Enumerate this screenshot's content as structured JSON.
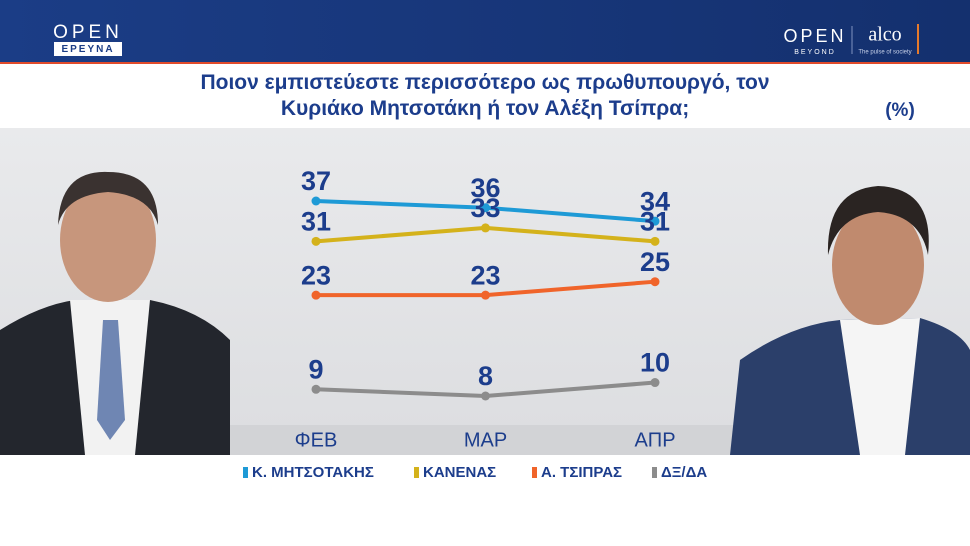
{
  "header": {
    "logo_left": "OPEN",
    "logo_left_sub": "ΕΡΕΥΝΑ",
    "logo_right": "OPEN",
    "logo_right_sub": "BEYOND",
    "partner": "alco",
    "partner_tagline": "The pulse of society"
  },
  "chart_data": {
    "type": "line",
    "title": "Ποιον εμπιστεύεστε περισσότερο ως πρωθυπουργό, τον Κυριάκο Μητσοτάκη ή τον Αλέξη Τσίπρα;",
    "unit_label": "(%)",
    "categories": [
      "ΦΕΒ",
      "ΜΑΡ",
      "ΑΠΡ"
    ],
    "series": [
      {
        "name": "Κ. ΜΗΤΣΟΤΑΚΗΣ",
        "color": "#1e9ad6",
        "values": [
          37,
          36,
          34
        ]
      },
      {
        "name": "ΚΑΝΕΝΑΣ",
        "color": "#d4b21b",
        "values": [
          31,
          33,
          31
        ]
      },
      {
        "name": "Α. ΤΣΙΠΡΑΣ",
        "color": "#f0642a",
        "values": [
          23,
          23,
          25
        ]
      },
      {
        "name": "ΔΞ/ΔΑ",
        "color": "#8c8c8c",
        "values": [
          9,
          8,
          10
        ]
      }
    ]
  }
}
